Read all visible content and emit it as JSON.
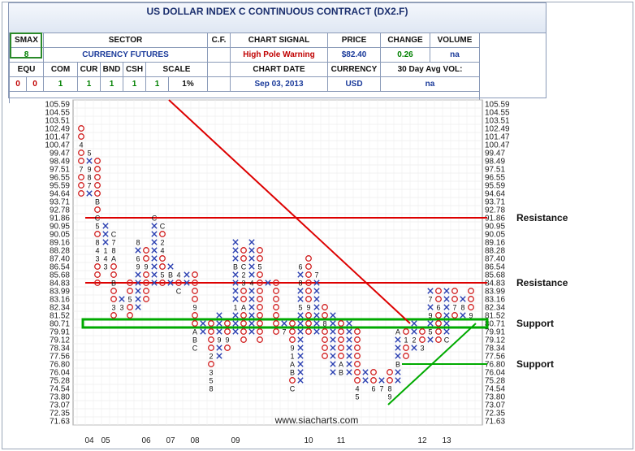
{
  "header": {
    "title": "US DOLLAR INDEX C CONTINUOUS CONTRACT (DX2.F)",
    "labels": {
      "smax": "SMAX",
      "sector": "SECTOR",
      "cf": "C.F.",
      "chart_signal": "CHART SIGNAL",
      "price": "PRICE",
      "change": "CHANGE",
      "volume": "VOLUME",
      "chart_date": "CHART DATE",
      "currency": "CURRENCY",
      "avg_vol": "30 Day Avg VOL:"
    },
    "values": {
      "smax": "8",
      "sector": "CURRENCY FUTURES",
      "cf": "",
      "chart_signal": "High Pole Warning",
      "price": "$82.40",
      "change": "0.26",
      "volume": "na",
      "chart_date": "Sep 03, 2013",
      "currency": "USD",
      "avg_vol": "na"
    },
    "asset_classes": [
      {
        "label": "EQU",
        "value": "0"
      },
      {
        "label": "COM",
        "value": "0"
      },
      {
        "label": "CUR",
        "value": "1"
      },
      {
        "label": "BND",
        "value": "1"
      },
      {
        "label": "CSH",
        "value": "1"
      },
      {
        "label": "SCALE",
        "value": "1%"
      }
    ],
    "extra_row": [
      "1",
      "1",
      "1",
      "1"
    ],
    "colors": {
      "green": "#008000",
      "red": "#c00000",
      "blue": "#1a3a9a"
    }
  },
  "chart_data": {
    "type": "point-and-figure",
    "y_ticks": [
      "105.59",
      "104.55",
      "103.51",
      "102.49",
      "101.47",
      "100.47",
      "99.47",
      "98.49",
      "97.51",
      "96.55",
      "95.59",
      "94.64",
      "93.71",
      "92.78",
      "91.86",
      "90.95",
      "90.05",
      "89.16",
      "88.28",
      "87.40",
      "86.54",
      "85.68",
      "84.83",
      "83.99",
      "83.16",
      "82.34",
      "81.52",
      "80.71",
      "79.91",
      "79.12",
      "78.34",
      "77.56",
      "76.80",
      "76.04",
      "75.28",
      "74.54",
      "73.80",
      "73.07",
      "72.35",
      "71.63"
    ],
    "x_labels": [
      {
        "label": "04",
        "col": 2
      },
      {
        "label": "05",
        "col": 4
      },
      {
        "label": "06",
        "col": 9
      },
      {
        "label": "07",
        "col": 12
      },
      {
        "label": "08",
        "col": 15
      },
      {
        "label": "09",
        "col": 20
      },
      {
        "label": "10",
        "col": 29
      },
      {
        "label": "11",
        "col": 33
      },
      {
        "label": "12",
        "col": 43
      },
      {
        "label": "13",
        "col": 46
      }
    ],
    "columns": [
      {
        "col": 1,
        "type": "O",
        "top": "102.49",
        "bottom": "94.64",
        "marks": {
          "100.47": "4",
          "97.51": "7"
        }
      },
      {
        "col": 2,
        "type": "X",
        "top": "99.47",
        "bottom": "94.64",
        "marks": {
          "99.47": "5",
          "97.51": "9",
          "96.55": "8",
          "95.59": "7"
        }
      },
      {
        "col": 3,
        "type": "O",
        "top": "98.49",
        "bottom": "84.83",
        "marks": {
          "93.71": "B",
          "91.86": "C",
          "90.95": "5",
          "89.16": "8",
          "88.28": "4",
          "87.40": "3"
        }
      },
      {
        "col": 4,
        "type": "X",
        "top": "90.95",
        "bottom": "86.54",
        "marks": {
          "88.28": "1",
          "87.40": "4",
          "86.54": "3"
        }
      },
      {
        "col": 5,
        "type": "O",
        "top": "90.05",
        "bottom": "81.52",
        "marks": {
          "90.05": "C",
          "89.16": "7",
          "88.28": "8",
          "87.40": "A",
          "84.83": "B",
          "82.34": "3"
        }
      },
      {
        "col": 6,
        "type": "X",
        "top": "83.16",
        "bottom": "82.34",
        "marks": {
          "82.34": "3"
        }
      },
      {
        "col": 7,
        "type": "O",
        "top": "84.83",
        "bottom": "81.52",
        "marks": {
          "83.16": "5"
        }
      },
      {
        "col": 8,
        "type": "X",
        "top": "89.16",
        "bottom": "82.34",
        "marks": {
          "89.16": "8",
          "87.40": "6",
          "86.54": "9"
        }
      },
      {
        "col": 9,
        "type": "O",
        "top": "88.28",
        "bottom": "83.16",
        "marks": {
          "86.54": "9"
        }
      },
      {
        "col": 10,
        "type": "X",
        "top": "91.86",
        "bottom": "84.83",
        "marks": {
          "91.86": "C"
        }
      },
      {
        "col": 11,
        "type": "O",
        "top": "90.95",
        "bottom": "84.83",
        "marks": {
          "90.95": "C",
          "89.16": "2",
          "88.28": "4",
          "85.68": "5"
        }
      },
      {
        "col": 12,
        "type": "X",
        "top": "86.54",
        "bottom": "84.83",
        "marks": {
          "85.68": "B"
        }
      },
      {
        "col": 13,
        "type": "O",
        "top": "85.68",
        "bottom": "83.99",
        "marks": {
          "85.68": "4",
          "83.99": "C"
        }
      },
      {
        "col": 14,
        "type": "X",
        "top": "85.68",
        "bottom": "84.83",
        "marks": {}
      },
      {
        "col": 15,
        "type": "O",
        "top": "85.68",
        "bottom": "78.34",
        "marks": {
          "82.34": "9",
          "79.91": "A",
          "79.12": "B",
          "78.34": "C"
        }
      },
      {
        "col": 16,
        "type": "X",
        "top": "80.71",
        "bottom": "79.91",
        "marks": {}
      },
      {
        "col": 17,
        "type": "O",
        "top": "80.71",
        "bottom": "74.54",
        "marks": {
          "77.56": "2",
          "76.04": "3",
          "75.28": "5",
          "74.54": "8"
        }
      },
      {
        "col": 18,
        "type": "X",
        "top": "81.52",
        "bottom": "77.56",
        "marks": {
          "79.12": "9",
          "76.04": "4"
        }
      },
      {
        "col": 19,
        "type": "O",
        "top": "80.71",
        "bottom": "78.34",
        "marks": {
          "79.12": "9"
        }
      },
      {
        "col": 20,
        "type": "X",
        "top": "89.16",
        "bottom": "79.91",
        "marks": {
          "86.54": "B",
          "82.34": "1"
        }
      },
      {
        "col": 21,
        "type": "O",
        "top": "88.28",
        "bottom": "79.12",
        "marks": {
          "86.54": "C",
          "85.68": "2",
          "84.83": "3",
          "82.34": "A"
        }
      },
      {
        "col": 22,
        "type": "X",
        "top": "89.16",
        "bottom": "79.91",
        "marks": {
          "84.83": "4"
        }
      },
      {
        "col": 23,
        "type": "O",
        "top": "88.28",
        "bottom": "79.12",
        "marks": {
          "86.54": "5"
        }
      },
      {
        "col": 24,
        "type": "X",
        "top": "84.83",
        "bottom": "84.83",
        "marks": {}
      },
      {
        "col": 25,
        "type": "O",
        "top": "84.83",
        "bottom": "79.91",
        "marks": {}
      },
      {
        "col": 26,
        "type": "X",
        "top": "80.71",
        "bottom": "79.91",
        "marks": {
          "79.91": "7"
        }
      },
      {
        "col": 27,
        "type": "O",
        "top": "80.71",
        "bottom": "74.54",
        "marks": {
          "78.34": "9",
          "77.56": "1",
          "76.80": "A",
          "76.04": "B",
          "74.54": "C"
        }
      },
      {
        "col": 28,
        "type": "X",
        "top": "86.54",
        "bottom": "75.28",
        "marks": {
          "86.54": "6",
          "84.83": "8",
          "82.34": "5"
        }
      },
      {
        "col": 29,
        "type": "O",
        "top": "87.40",
        "bottom": "79.91",
        "marks": {
          "82.34": "9"
        }
      },
      {
        "col": 30,
        "type": "X",
        "top": "85.68",
        "bottom": "79.91",
        "marks": {
          "85.68": "7"
        }
      },
      {
        "col": 31,
        "type": "O",
        "top": "82.34",
        "bottom": "77.56",
        "marks": {
          "80.71": "8"
        }
      },
      {
        "col": 32,
        "type": "X",
        "top": "81.52",
        "bottom": "76.04",
        "marks": {}
      },
      {
        "col": 33,
        "type": "O",
        "top": "80.71",
        "bottom": "76.04",
        "marks": {
          "76.80": "A",
          "76.04": "B"
        }
      },
      {
        "col": 34,
        "type": "X",
        "top": "80.71",
        "bottom": "76.04",
        "marks": {}
      },
      {
        "col": 35,
        "type": "O",
        "top": "79.91",
        "bottom": "73.80",
        "marks": {
          "74.54": "4",
          "73.80": "5"
        }
      },
      {
        "col": 36,
        "type": "X",
        "top": "76.04",
        "bottom": "75.28",
        "marks": {}
      },
      {
        "col": 37,
        "type": "O",
        "top": "76.04",
        "bottom": "74.54",
        "marks": {
          "74.54": "6"
        }
      },
      {
        "col": 38,
        "type": "X",
        "top": "75.28",
        "bottom": "74.54",
        "marks": {
          "74.54": "7"
        }
      },
      {
        "col": 39,
        "type": "O",
        "top": "76.04",
        "bottom": "73.80",
        "marks": {
          "74.54": "8",
          "73.80": "9"
        }
      },
      {
        "col": 40,
        "type": "X",
        "top": "79.91",
        "bottom": "75.28",
        "marks": {
          "79.91": "A",
          "76.80": "B"
        }
      },
      {
        "col": 41,
        "type": "O",
        "top": "79.91",
        "bottom": "77.56",
        "marks": {
          "79.12": "1"
        }
      },
      {
        "col": 42,
        "type": "X",
        "top": "80.71",
        "bottom": "78.34",
        "marks": {
          "79.12": "2"
        }
      },
      {
        "col": 43,
        "type": "O",
        "top": "79.91",
        "bottom": "78.34",
        "marks": {
          "78.34": "3"
        }
      },
      {
        "col": 44,
        "type": "X",
        "top": "83.99",
        "bottom": "79.12",
        "marks": {
          "83.16": "7",
          "81.52": "9",
          "79.91": "5"
        }
      },
      {
        "col": 45,
        "type": "O",
        "top": "83.99",
        "bottom": "79.12",
        "marks": {
          "82.34": "6"
        }
      },
      {
        "col": 46,
        "type": "X",
        "top": "83.99",
        "bottom": "79.12",
        "marks": {
          "79.12": "C"
        }
      },
      {
        "col": 47,
        "type": "O",
        "top": "83.99",
        "bottom": "81.52",
        "marks": {
          "82.34": "7"
        }
      },
      {
        "col": 48,
        "type": "X",
        "top": "83.16",
        "bottom": "81.52",
        "marks": {
          "82.34": "8"
        }
      },
      {
        "col": 49,
        "type": "O",
        "top": "83.99",
        "bottom": "81.52",
        "marks": {
          "81.52": "9"
        }
      }
    ],
    "levels": [
      {
        "label": "Resistance",
        "value": "91.86",
        "color": "#dd0000"
      },
      {
        "label": "Resistance",
        "value": "84.83",
        "color": "#dd0000"
      },
      {
        "label": "Support",
        "value": "80.71",
        "color": "#00aa00",
        "box": true
      },
      {
        "label": "Support",
        "value": "76.80",
        "color": "#00aa00"
      }
    ],
    "trendlines": [
      {
        "kind": "resistance",
        "color": "#dd0000",
        "from": {
          "col": 11.8,
          "value": "105.59"
        },
        "to": {
          "col": 41.5,
          "value": "80.71"
        }
      },
      {
        "kind": "support",
        "color": "#00aa00",
        "from": {
          "col": 38.8,
          "value": "73.07"
        },
        "to": {
          "col": 49.6,
          "value": "80.71"
        }
      }
    ],
    "watermark": "www.siacharts.com"
  }
}
